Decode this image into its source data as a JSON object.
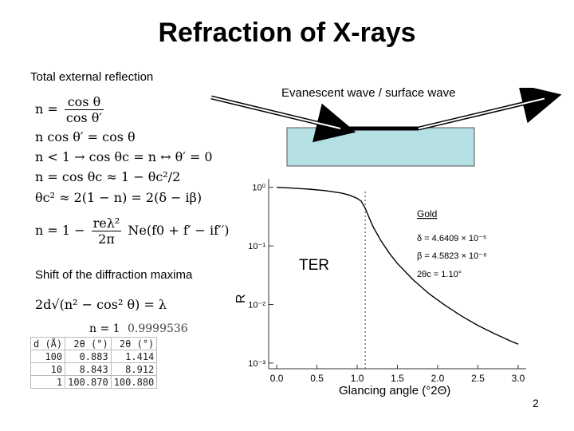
{
  "slide": {
    "title": "Refraction of X-rays",
    "subtitle_left": "Total external reflection",
    "subtitle_right": "Evanescent wave / surface wave",
    "shift_label": "Shift of the diffraction maxima",
    "page_number": "2"
  },
  "equations": {
    "eq1_lhs": "n =",
    "eq1_num": "cos θ",
    "eq1_den": "cos θ′",
    "eq2": "n cos θ′ = cos θ",
    "eq3": "n < 1 → cos θc = n ↔ θ′ = 0",
    "eq4": "n = cos θc ≈ 1 − θc²/2",
    "eq5": "θc² ≈ 2(1 − n) = 2(δ − iβ)",
    "eq6_lhs": "n = 1 −",
    "eq6_num": "reλ²",
    "eq6_den": "2π",
    "eq6_rhs": "Ne(f0 + f′ − if′′)",
    "eq7": "2d√(n² − cos² θ) = λ"
  },
  "table": {
    "above_n": "n = 1",
    "above_val": "0.9999536",
    "headers": [
      "d (Å)",
      "2θ (°)",
      "2θ (°)"
    ],
    "rows": [
      [
        "100",
        "0.883",
        "1.414"
      ],
      [
        "10",
        "8.843",
        "8.912"
      ],
      [
        "1",
        "100.870",
        "100.880"
      ]
    ]
  },
  "colors": {
    "sample_fill": "#b4dfe3",
    "sample_border": "#555555",
    "arrow": "#000000"
  },
  "chart_data": {
    "type": "line",
    "title": "",
    "xlabel": "Glancing angle (°2Θ)",
    "ylabel": "R",
    "yscale": "log",
    "xlim": [
      -0.1,
      3.1
    ],
    "ylim": [
      0.0008,
      1.4
    ],
    "xticks": [
      "0.0",
      "0.5",
      "1.0",
      "1.5",
      "2.0",
      "2.5",
      "3.0"
    ],
    "yticks": [
      "10⁰",
      "10⁻¹",
      "10⁻²",
      "10⁻³"
    ],
    "ytick_values": [
      1,
      0.1,
      0.01,
      0.001
    ],
    "critical_angle_marker": 1.1,
    "annotation_TER": "TER",
    "legend": {
      "name": "Gold",
      "delta": "δ = 4.6409 × 10⁻⁵",
      "beta": "β = 4.5823 × 10⁻⁶",
      "theta_c": "2θc = 1.10°"
    },
    "series": [
      {
        "x": [
          0.0,
          0.2,
          0.4,
          0.6,
          0.8,
          0.9,
          1.0,
          1.05,
          1.1,
          1.15,
          1.2,
          1.3,
          1.4,
          1.5,
          1.7,
          1.9,
          2.1,
          2.3,
          2.5,
          2.7,
          2.9,
          3.0
        ],
        "values": [
          1.0,
          0.97,
          0.93,
          0.88,
          0.8,
          0.74,
          0.65,
          0.58,
          0.44,
          0.3,
          0.21,
          0.12,
          0.075,
          0.05,
          0.026,
          0.015,
          0.0095,
          0.0063,
          0.0044,
          0.0032,
          0.0024,
          0.0021
        ]
      }
    ]
  }
}
